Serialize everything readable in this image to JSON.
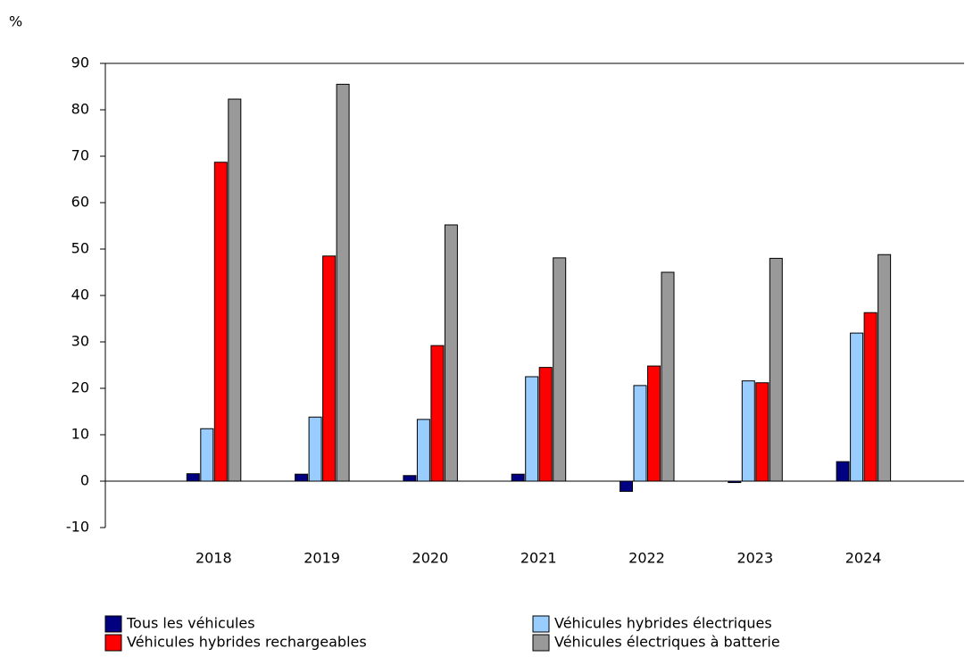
{
  "chart_data": {
    "type": "bar",
    "y_label": "%",
    "categories": [
      "2018",
      "2019",
      "2020",
      "2021",
      "2022",
      "2023",
      "2024"
    ],
    "series": [
      {
        "name": "Tous les véhicules",
        "color": "#000080",
        "values": [
          1.6,
          1.5,
          1.2,
          1.5,
          -2.2,
          -0.3,
          4.2
        ]
      },
      {
        "name": "Véhicules hybrides électriques",
        "color": "#99ccff",
        "values": [
          11.3,
          13.8,
          13.3,
          22.5,
          20.6,
          21.6,
          31.9
        ]
      },
      {
        "name": "Véhicules hybrides rechargeables",
        "color": "#ff0000",
        "values": [
          68.7,
          48.5,
          29.2,
          24.5,
          24.8,
          21.2,
          36.3
        ]
      },
      {
        "name": "Véhicules électriques à batterie",
        "color": "#999999",
        "values": [
          82.3,
          85.5,
          55.2,
          48.1,
          45.0,
          48.0,
          48.8
        ]
      }
    ],
    "ylim": [
      -10,
      90
    ],
    "yticks": [
      -10,
      0,
      10,
      20,
      30,
      40,
      50,
      60,
      70,
      80,
      90
    ]
  }
}
